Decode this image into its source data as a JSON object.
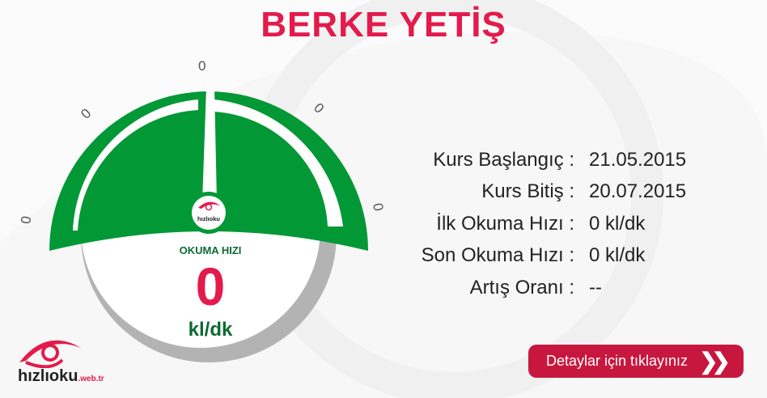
{
  "header": {
    "title": "BERKE YETİŞ"
  },
  "gauge": {
    "value": 0,
    "ticks": [
      "0",
      "0",
      "0",
      "0",
      "0"
    ],
    "label": "OKUMA HIZI",
    "value_text": "0",
    "unit": "kl/dk",
    "logo_text": "hızlıoku",
    "logo_sub": ".web.tr",
    "color_green": "#039836",
    "color_red": "#e31b4c"
  },
  "info": {
    "rows": [
      {
        "label": "Kurs Başlangıç :",
        "value": "21.05.2015"
      },
      {
        "label": "Kurs Bitiş :",
        "value": "20.07.2015"
      },
      {
        "label": "İlk Okuma Hızı :",
        "value": "0 kl/dk"
      },
      {
        "label": "Son Okuma Hızı :",
        "value": "0 kl/dk"
      },
      {
        "label": "Artış Oranı :",
        "value": "--"
      }
    ]
  },
  "details_button": {
    "label": "Detaylar için tıklayınız",
    "icon": "double-chevron-right-icon"
  },
  "brand": {
    "name": "hızlıoku",
    "suffix": ".web.tr",
    "reg": "®"
  }
}
